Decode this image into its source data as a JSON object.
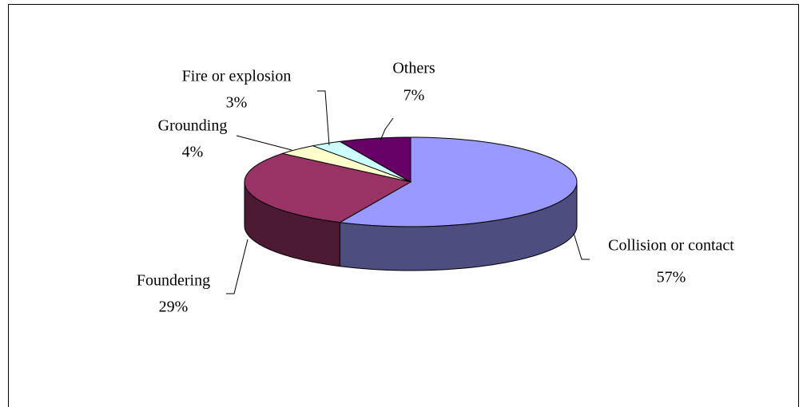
{
  "chart_data": {
    "type": "pie3d",
    "categories": [
      "Collision or contact",
      "Foundering",
      "Grounding",
      "Fire or explosion",
      "Others"
    ],
    "values": [
      57,
      29,
      4,
      3,
      7
    ],
    "value_labels": [
      "57%",
      "29%",
      "4%",
      "3%",
      "7%"
    ],
    "colors": [
      "#9999ff",
      "#993366",
      "#ffffcc",
      "#ccffff",
      "#660066"
    ]
  }
}
